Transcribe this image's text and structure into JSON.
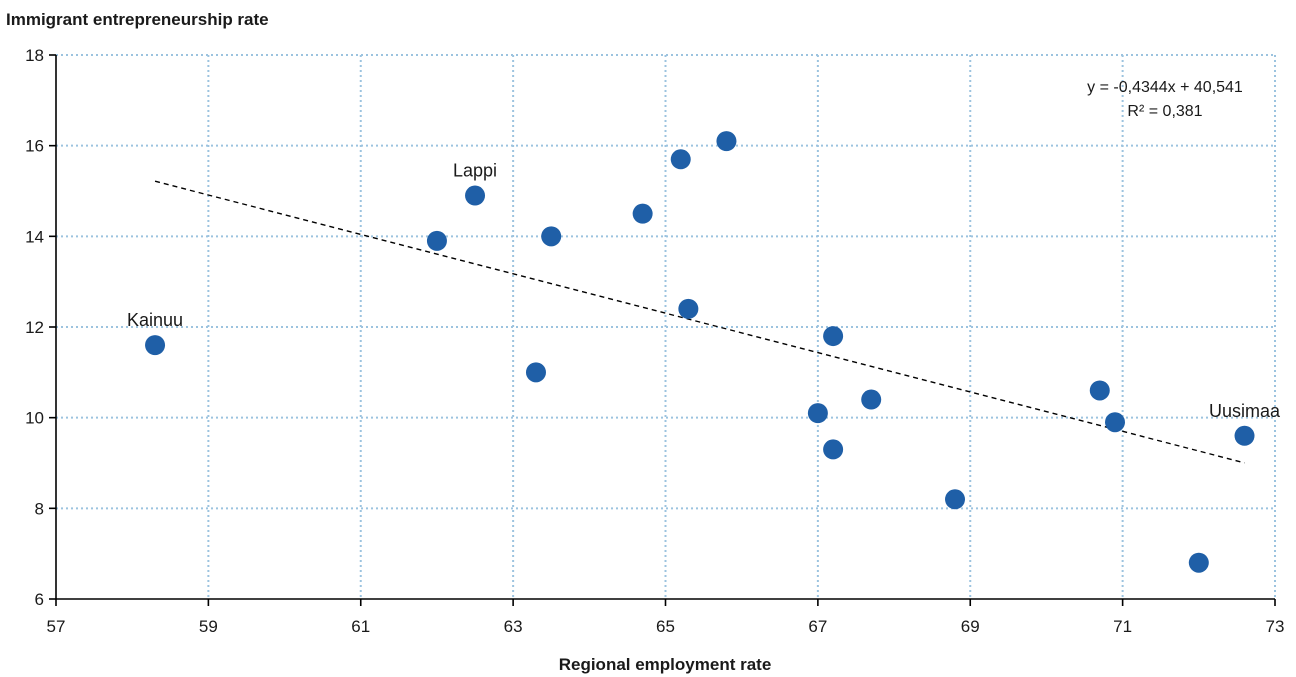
{
  "chart_data": {
    "type": "scatter",
    "title": "",
    "ylabel": "Immigrant entrepreneurship rate",
    "xlabel": "Regional employment rate",
    "xlim": [
      57,
      73
    ],
    "ylim": [
      6,
      18
    ],
    "x_ticks": [
      "57",
      "59",
      "61",
      "63",
      "65",
      "67",
      "69",
      "71",
      "73"
    ],
    "y_ticks": [
      "6",
      "8",
      "10",
      "12",
      "14",
      "16",
      "18"
    ],
    "grid": true,
    "colors": {
      "points": "#1f5fa7",
      "grid": "#9cc3df",
      "trendline": "#000000"
    },
    "points": [
      {
        "x": 58.3,
        "y": 11.6,
        "label": "Kainuu"
      },
      {
        "x": 62.0,
        "y": 13.9,
        "label": ""
      },
      {
        "x": 62.5,
        "y": 14.9,
        "label": "Lappi"
      },
      {
        "x": 63.3,
        "y": 11.0,
        "label": ""
      },
      {
        "x": 63.5,
        "y": 14.0,
        "label": ""
      },
      {
        "x": 64.7,
        "y": 14.5,
        "label": ""
      },
      {
        "x": 65.2,
        "y": 15.7,
        "label": ""
      },
      {
        "x": 65.3,
        "y": 12.4,
        "label": ""
      },
      {
        "x": 65.8,
        "y": 16.1,
        "label": ""
      },
      {
        "x": 67.0,
        "y": 10.1,
        "label": ""
      },
      {
        "x": 67.2,
        "y": 11.8,
        "label": ""
      },
      {
        "x": 67.2,
        "y": 9.3,
        "label": ""
      },
      {
        "x": 67.7,
        "y": 10.4,
        "label": ""
      },
      {
        "x": 68.8,
        "y": 8.2,
        "label": ""
      },
      {
        "x": 70.7,
        "y": 10.6,
        "label": ""
      },
      {
        "x": 70.9,
        "y": 9.9,
        "label": ""
      },
      {
        "x": 72.0,
        "y": 6.8,
        "label": ""
      },
      {
        "x": 72.6,
        "y": 9.6,
        "label": "Uusimaa"
      }
    ],
    "trendline": {
      "slope": -0.4344,
      "intercept": 40.541,
      "x_range": [
        58.3,
        72.6
      ],
      "equation": "y = -0,4344x + 40,541",
      "r_squared": "R² = 0,381"
    }
  }
}
